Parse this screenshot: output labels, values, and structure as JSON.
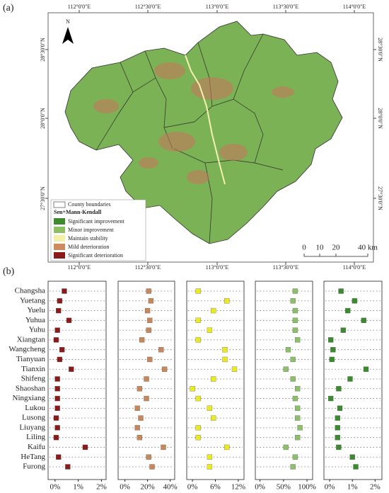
{
  "figure_label_a": "(a)",
  "figure_label_b": "(b)",
  "map": {
    "north": "N",
    "lon_labels": [
      "112°0'0\"E",
      "112°30'0\"E",
      "113°0'0\"E",
      "113°30'0\"E",
      "114°0'0\"E"
    ],
    "lat_labels": [
      "28°30'0\"N",
      "28°0'0\"N",
      "27°30'0\"N"
    ],
    "legend_boundary": "County boundaries",
    "legend_title": "Sen+Mann-Kendall",
    "legend_items": [
      {
        "label": "Significant improvement",
        "color": "#3d8a2f"
      },
      {
        "label": "Minor improvement",
        "color": "#8cc063"
      },
      {
        "label": "Maintain stability",
        "color": "#f4f0a8"
      },
      {
        "label": "Mild deterioration",
        "color": "#d08a5c"
      },
      {
        "label": "Significant deterioration",
        "color": "#8b1a1a"
      }
    ],
    "scale_labels": [
      "0",
      "10",
      "20",
      "40 km"
    ]
  },
  "chart_data": {
    "type": "dot",
    "categories": [
      "Changsha",
      "Yuetang",
      "Yuelu",
      "Yuhua",
      "Yuhu",
      "Xiangtan",
      "Wangcheng",
      "Tianyuan",
      "Tianxin",
      "Shifeng",
      "Shaoshan",
      "Ningxiang",
      "Lukou",
      "Lusong",
      "Liuyang",
      "Liling",
      "Kaifu",
      "HeTang",
      "Furong"
    ],
    "series": [
      {
        "color": "#8b1a1a",
        "values": [
          0.4,
          0.2,
          0.15,
          0.6,
          0.1,
          0.05,
          0.3,
          0.2,
          0.7,
          0.1,
          0.1,
          0.1,
          0.1,
          0.05,
          0.1,
          0.05,
          1.3,
          0.15,
          0.55
        ],
        "xlim": [
          -0.3,
          2.2
        ],
        "xticks": [
          {
            "value": 0,
            "label": "0%"
          },
          {
            "value": 1,
            "label": "1%"
          },
          {
            "value": 2,
            "label": "2%"
          }
        ]
      },
      {
        "color": "#c8875a",
        "values": [
          21,
          23,
          20,
          22,
          21,
          15,
          32,
          22,
          35,
          19,
          13,
          19,
          11,
          14,
          11,
          13,
          34,
          21,
          24
        ],
        "xlim": [
          -6,
          44
        ],
        "xticks": [
          {
            "value": 0,
            "label": "0%"
          },
          {
            "value": 20,
            "label": "20%"
          },
          {
            "value": 40,
            "label": "40%"
          }
        ]
      },
      {
        "color": "#eaea22",
        "values": [
          1.5,
          9,
          5.5,
          1.5,
          4.5,
          1.5,
          8.5,
          8.5,
          11,
          5.5,
          0,
          1.5,
          4.5,
          5.5,
          1.5,
          1.5,
          9,
          4.5,
          4.5
        ],
        "xlim": [
          -1.5,
          13.5
        ],
        "xticks": [
          {
            "value": 0,
            "label": "0%"
          },
          {
            "value": 6,
            "label": "6%"
          },
          {
            "value": 12,
            "label": "12%"
          }
        ]
      },
      {
        "color": "#8cbf6a",
        "values": [
          75,
          70,
          75,
          75,
          75,
          80,
          60,
          70,
          55,
          70,
          80,
          75,
          80,
          80,
          85,
          80,
          55,
          75,
          70
        ],
        "xlim": [
          -10,
          112
        ],
        "xticks": [
          {
            "value": 0,
            "label": "0%"
          },
          {
            "value": 50,
            "label": "50%"
          },
          {
            "value": 100,
            "label": "100%"
          }
        ]
      },
      {
        "color": "#3a8a2e",
        "values": [
          0.5,
          1.1,
          0.8,
          1.5,
          0.6,
          0.05,
          0.15,
          0.1,
          1.6,
          0.9,
          0.4,
          0.05,
          0.45,
          0.35,
          0.35,
          0.35,
          0.4,
          1.0,
          1.15
        ],
        "xlim": [
          -0.25,
          2.3
        ],
        "xticks": [
          {
            "value": 0,
            "label": "0%"
          },
          {
            "value": 1,
            "label": "1%"
          },
          {
            "value": 2,
            "label": "2%"
          }
        ]
      }
    ]
  }
}
